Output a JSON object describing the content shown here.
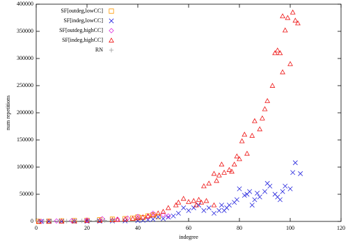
{
  "chart_data": {
    "type": "scatter",
    "x_label": "indegree",
    "y_label": "num repetitions",
    "xlim": [
      0,
      120
    ],
    "xticks": [
      0,
      20,
      40,
      60,
      80,
      100,
      120
    ],
    "ylim": [
      0,
      400000
    ],
    "yticks": [
      0,
      50000,
      100000,
      150000,
      200000,
      250000,
      300000,
      350000,
      400000
    ],
    "legend": "top-left",
    "series": [
      {
        "name": "SF[outdeg,lowCC]",
        "color": "#ff9900",
        "marker": "square",
        "x": [
          1,
          5,
          10,
          15,
          20,
          25,
          30,
          35,
          38,
          40,
          42,
          44,
          46,
          48
        ],
        "values": [
          0,
          500,
          1000,
          1500,
          2000,
          3000,
          4000,
          5000,
          6000,
          8000,
          7000,
          10000,
          12000,
          9000
        ]
      },
      {
        "name": "SF[indeg,lowCC]",
        "color": "#2222dd",
        "marker": "x",
        "x": [
          102,
          101,
          104,
          100,
          98,
          97,
          96,
          95,
          94,
          92,
          91,
          90,
          88,
          87,
          86,
          85,
          84,
          83,
          82,
          80,
          79,
          78,
          76,
          75,
          74,
          73,
          72,
          70,
          68,
          66,
          64,
          62,
          60,
          58,
          56,
          54,
          52,
          50,
          48,
          46,
          44,
          42,
          40,
          35,
          30,
          25,
          20,
          15,
          10,
          5,
          2
        ],
        "values": [
          108000,
          90000,
          88000,
          60000,
          65000,
          55000,
          40000,
          45000,
          50000,
          65000,
          70000,
          55000,
          45000,
          52000,
          40000,
          30000,
          55000,
          50000,
          48000,
          60000,
          40000,
          35000,
          30000,
          25000,
          20000,
          30000,
          20000,
          15000,
          25000,
          20000,
          30000,
          25000,
          20000,
          25000,
          15000,
          10000,
          8000,
          5000,
          8000,
          4000,
          3000,
          2000,
          1500,
          1000,
          800,
          500,
          300,
          200,
          100,
          50,
          0
        ]
      },
      {
        "name": "SF[outdeg,highCC]",
        "color": "#dd33dd",
        "marker": "diamond",
        "x": [
          2,
          8,
          14,
          20,
          26,
          32,
          36,
          40,
          44,
          46,
          50,
          52
        ],
        "values": [
          0,
          800,
          1500,
          2500,
          5000,
          4000,
          6000,
          9000,
          8000,
          15000,
          12000,
          10000
        ]
      },
      {
        "name": "SF[indeg,highCC]",
        "color": "#ee1111",
        "marker": "triangle",
        "x": [
          97,
          98,
          99,
          101,
          102,
          103,
          100,
          97,
          96,
          95,
          94,
          93,
          91,
          90,
          89,
          88,
          86,
          85,
          82,
          81,
          83,
          80,
          79,
          78,
          76,
          77,
          74,
          73,
          72,
          71,
          70,
          68,
          66,
          64,
          62,
          60,
          58,
          56,
          55,
          52,
          50,
          48,
          46,
          44,
          42,
          40,
          38,
          35,
          32,
          30,
          25,
          20,
          15,
          10,
          5,
          1,
          67,
          65,
          63,
          70
        ],
        "values": [
          378000,
          352000,
          375000,
          385000,
          370000,
          365000,
          290000,
          275000,
          310000,
          315000,
          310000,
          250000,
          222000,
          207000,
          190000,
          170000,
          185000,
          158000,
          160000,
          148000,
          125000,
          115000,
          120000,
          105000,
          95000,
          92000,
          90000,
          105000,
          85000,
          75000,
          88000,
          70000,
          65000,
          40000,
          38000,
          36000,
          42000,
          35000,
          30000,
          25000,
          18000,
          15000,
          12000,
          10000,
          8000,
          6000,
          5000,
          4000,
          3000,
          2500,
          1500,
          1000,
          500,
          300,
          100,
          0,
          38000,
          35000,
          30000,
          30000
        ]
      },
      {
        "name": "RN",
        "color": "#999999",
        "marker": "plus",
        "x": [
          1,
          3,
          6,
          9,
          12,
          15,
          18,
          21,
          24,
          27,
          30
        ],
        "values": [
          0,
          200,
          300,
          500,
          600,
          800,
          1000,
          1200,
          1500,
          1800,
          2000
        ]
      }
    ]
  }
}
